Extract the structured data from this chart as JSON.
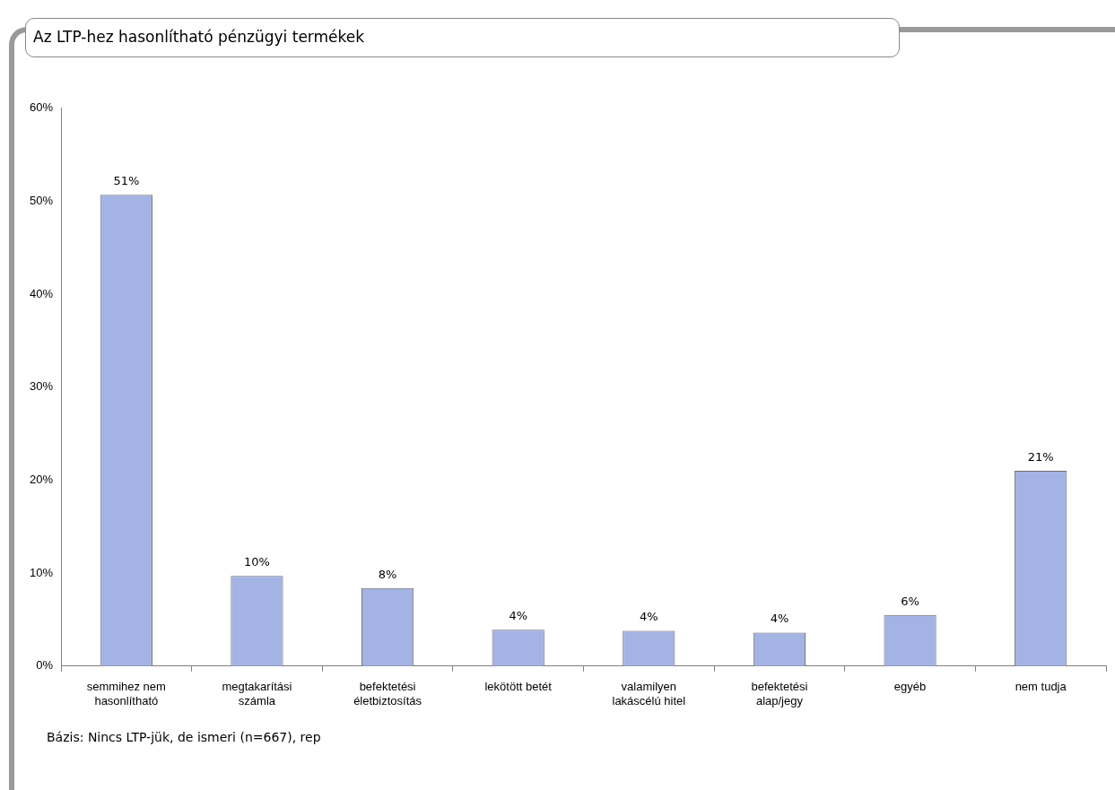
{
  "chart_data": {
    "type": "bar",
    "title": "Az LTP-hez hasonlítható pénzügyi termékek",
    "categories": [
      "semmihez nem hasonlítható",
      "megtakarítási számla",
      "befektetési életbiztosítás",
      "lekötött betét",
      "valamilyen lakáscélú hitel",
      "befektetési alap/jegy",
      "egyéb",
      "nem tudja"
    ],
    "values": [
      50.7,
      9.7,
      8.4,
      3.9,
      3.8,
      3.6,
      5.5,
      21.0
    ],
    "value_labels": [
      "51%",
      "10%",
      "8%",
      "4%",
      "4%",
      "4%",
      "6%",
      "21%"
    ],
    "color": "#a3b3e3",
    "ylim": [
      0,
      60
    ],
    "yticks": [
      {
        "value": 0,
        "label": "0%"
      },
      {
        "value": 10,
        "label": "10%"
      },
      {
        "value": 20,
        "label": "20%"
      },
      {
        "value": 30,
        "label": "30%"
      },
      {
        "value": 40,
        "label": "40%"
      },
      {
        "value": 50,
        "label": "50%"
      },
      {
        "value": 60,
        "label": "60%"
      }
    ],
    "grid": false,
    "legend": false,
    "annotations": [
      "Bázis: Nincs LTP-jük, de ismeri (n=667), rep"
    ]
  }
}
